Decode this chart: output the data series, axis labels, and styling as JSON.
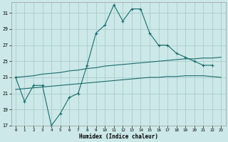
{
  "xlabel": "Humidex (Indice chaleur)",
  "bg_color": "#cce8e8",
  "grid_color": "#aacccc",
  "line_color": "#1a6b6b",
  "ylim": [
    17,
    32
  ],
  "xlim": [
    -0.5,
    23.5
  ],
  "yticks": [
    17,
    19,
    21,
    23,
    25,
    27,
    29,
    31
  ],
  "xticks": [
    0,
    1,
    2,
    3,
    4,
    5,
    6,
    7,
    8,
    9,
    10,
    11,
    12,
    13,
    14,
    15,
    16,
    17,
    18,
    19,
    20,
    21,
    22,
    23
  ],
  "series1_x": [
    0,
    1,
    2,
    3,
    4,
    5,
    6,
    7,
    8,
    9,
    10,
    11,
    12,
    13,
    14,
    15,
    16,
    17,
    18,
    19,
    20,
    21,
    22
  ],
  "series1_y": [
    23,
    20,
    22,
    22,
    17,
    18.5,
    20.5,
    21,
    24.5,
    28.5,
    29.5,
    32,
    30,
    31.5,
    31.5,
    28.5,
    27,
    27,
    26,
    25.5,
    25,
    24.5,
    24.5
  ],
  "series2_x": [
    0,
    1,
    2,
    3,
    4,
    5,
    6,
    7,
    8,
    9,
    10,
    11,
    12,
    13,
    14,
    15,
    16,
    17,
    18,
    19,
    20,
    21,
    22,
    23
  ],
  "series2_y": [
    23.0,
    23.1,
    23.2,
    23.4,
    23.5,
    23.6,
    23.8,
    23.9,
    24.1,
    24.2,
    24.4,
    24.5,
    24.6,
    24.7,
    24.8,
    24.9,
    25.0,
    25.1,
    25.2,
    25.3,
    25.3,
    25.4,
    25.4,
    25.5
  ],
  "series3_x": [
    0,
    1,
    2,
    3,
    4,
    5,
    6,
    7,
    8,
    9,
    10,
    11,
    12,
    13,
    14,
    15,
    16,
    17,
    18,
    19,
    20,
    21,
    22,
    23
  ],
  "series3_y": [
    21.5,
    21.6,
    21.7,
    21.8,
    21.9,
    22.0,
    22.1,
    22.2,
    22.3,
    22.4,
    22.5,
    22.6,
    22.7,
    22.8,
    22.9,
    23.0,
    23.0,
    23.1,
    23.1,
    23.2,
    23.2,
    23.2,
    23.1,
    23.0
  ]
}
